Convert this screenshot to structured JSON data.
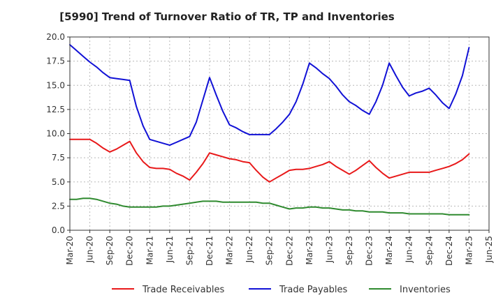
{
  "chart_data": {
    "type": "line",
    "title": "[5990]  Trend of Turnover Ratio of TR, TP and Inventories",
    "xlabel": "",
    "ylabel": "",
    "ylim": [
      0,
      20
    ],
    "yticks": [
      "0.0",
      "2.5",
      "5.0",
      "7.5",
      "10.0",
      "12.5",
      "15.0",
      "17.5",
      "20.0"
    ],
    "grid": true,
    "legend_position": "bottom",
    "x_tick_labels": [
      "Mar-20",
      "Jun-20",
      "Sep-20",
      "Dec-20",
      "Mar-21",
      "Jun-21",
      "Sep-21",
      "Dec-21",
      "Mar-22",
      "Jun-22",
      "Sep-22",
      "Dec-22",
      "Mar-23",
      "Jun-23",
      "Sep-23",
      "Dec-23",
      "Mar-24",
      "Jun-24",
      "Sep-24",
      "Dec-24",
      "Mar-25",
      "Jun-25"
    ],
    "x": [
      "Mar-20",
      "Apr-20",
      "May-20",
      "Jun-20",
      "Jul-20",
      "Aug-20",
      "Sep-20",
      "Oct-20",
      "Nov-20",
      "Dec-20",
      "Jan-21",
      "Feb-21",
      "Mar-21",
      "Apr-21",
      "May-21",
      "Jun-21",
      "Jul-21",
      "Aug-21",
      "Sep-21",
      "Oct-21",
      "Nov-21",
      "Dec-21",
      "Jan-22",
      "Feb-22",
      "Mar-22",
      "Apr-22",
      "May-22",
      "Jun-22",
      "Jul-22",
      "Aug-22",
      "Sep-22",
      "Oct-22",
      "Nov-22",
      "Dec-22",
      "Jan-23",
      "Feb-23",
      "Mar-23",
      "Apr-23",
      "May-23",
      "Jun-23",
      "Jul-23",
      "Aug-23",
      "Sep-23",
      "Oct-23",
      "Nov-23",
      "Dec-23",
      "Jan-24",
      "Feb-24",
      "Mar-24",
      "Apr-24",
      "May-24",
      "Jun-24",
      "Jul-24",
      "Aug-24",
      "Sep-24",
      "Oct-24",
      "Nov-24",
      "Dec-24",
      "Jan-25",
      "Feb-25",
      "Mar-25"
    ],
    "series": [
      {
        "name": "Trade Receivables",
        "color": "#e8191a",
        "values": [
          9.4,
          9.4,
          9.4,
          9.4,
          9.0,
          8.5,
          8.1,
          8.4,
          8.8,
          9.2,
          8.0,
          7.1,
          6.5,
          6.4,
          6.4,
          6.3,
          5.9,
          5.6,
          5.2,
          6.0,
          6.9,
          8.0,
          7.8,
          7.6,
          7.4,
          7.3,
          7.1,
          7.0,
          6.2,
          5.5,
          5.0,
          5.4,
          5.8,
          6.2,
          6.3,
          6.3,
          6.4,
          6.6,
          6.8,
          7.1,
          6.6,
          6.2,
          5.8,
          6.2,
          6.7,
          7.2,
          6.5,
          5.9,
          5.4,
          5.6,
          5.8,
          6.0,
          6.0,
          6.0,
          6.0,
          6.2,
          6.4,
          6.6,
          6.9,
          7.3,
          7.9
        ]
      },
      {
        "name": "Trade Payables",
        "color": "#1111d6",
        "values": [
          19.2,
          18.6,
          18.0,
          17.4,
          16.9,
          16.3,
          15.8,
          15.7,
          15.6,
          15.5,
          12.8,
          10.8,
          9.4,
          9.2,
          9.0,
          8.8,
          9.1,
          9.4,
          9.7,
          11.2,
          13.5,
          15.8,
          14.0,
          12.3,
          10.9,
          10.6,
          10.2,
          9.9,
          9.9,
          9.9,
          9.9,
          10.5,
          11.2,
          12.0,
          13.3,
          15.1,
          17.3,
          16.8,
          16.2,
          15.7,
          14.9,
          14.0,
          13.3,
          12.9,
          12.4,
          12.0,
          13.3,
          15.0,
          17.3,
          16.0,
          14.8,
          13.9,
          14.2,
          14.4,
          14.7,
          14.0,
          13.2,
          12.6,
          14.1,
          16.0,
          18.9
        ]
      },
      {
        "name": "Inventories",
        "color": "#2f8a2f",
        "values": [
          3.2,
          3.2,
          3.3,
          3.3,
          3.2,
          3.0,
          2.8,
          2.7,
          2.5,
          2.4,
          2.4,
          2.4,
          2.4,
          2.4,
          2.5,
          2.5,
          2.6,
          2.7,
          2.8,
          2.9,
          3.0,
          3.0,
          3.0,
          2.9,
          2.9,
          2.9,
          2.9,
          2.9,
          2.9,
          2.8,
          2.8,
          2.6,
          2.4,
          2.2,
          2.3,
          2.3,
          2.4,
          2.4,
          2.3,
          2.3,
          2.2,
          2.1,
          2.1,
          2.0,
          2.0,
          1.9,
          1.9,
          1.9,
          1.8,
          1.8,
          1.8,
          1.7,
          1.7,
          1.7,
          1.7,
          1.7,
          1.7,
          1.6,
          1.6,
          1.6,
          1.6
        ]
      }
    ]
  }
}
